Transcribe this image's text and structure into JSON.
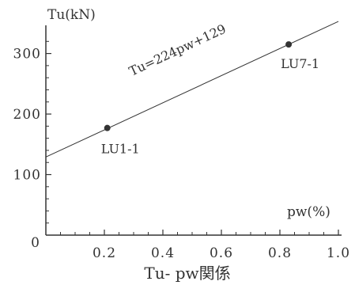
{
  "chart_data": {
    "type": "scatter",
    "title": "",
    "caption": "Tu- pw関係",
    "xlabel": "pw(%)",
    "ylabel": "Tu(kN)",
    "xlim": [
      0,
      1.0
    ],
    "ylim": [
      0,
      340
    ],
    "x_ticks": [
      0.2,
      0.4,
      0.6,
      0.8,
      1.0
    ],
    "x_tick_labels": [
      "0.2",
      "0.4",
      "0.6",
      "0.8",
      "1.0"
    ],
    "y_ticks": [
      100,
      200,
      300
    ],
    "y_tick_labels": [
      "100",
      "200",
      "300"
    ],
    "origin_label": "0",
    "grid": false,
    "points": [
      {
        "label": "LU1-1",
        "x": 0.21,
        "y": 177
      },
      {
        "label": "LU7-1",
        "x": 0.83,
        "y": 315
      }
    ],
    "fit_line": {
      "equation": "Tu=224pw+129",
      "slope": 224,
      "intercept": 129,
      "x_range": [
        0,
        1.0
      ]
    }
  },
  "colors": {
    "ink": "#333333"
  }
}
